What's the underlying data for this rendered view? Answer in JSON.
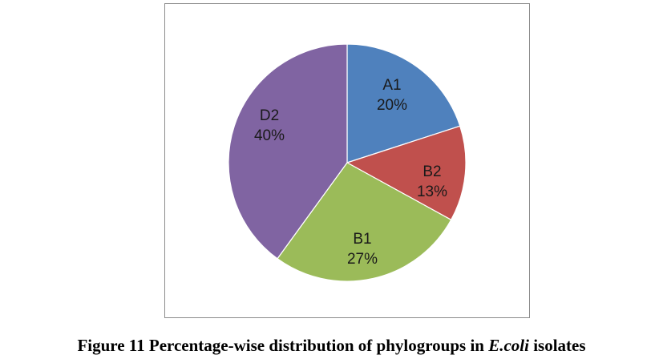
{
  "chart_data": {
    "type": "pie",
    "slices": [
      {
        "name": "A1",
        "value": 20,
        "label": "20%",
        "color": "#4f81bd"
      },
      {
        "name": "B2",
        "value": 13,
        "label": "13%",
        "color": "#c0504d"
      },
      {
        "name": "B1",
        "value": 27,
        "label": "27%",
        "color": "#9bbb59"
      },
      {
        "name": "D2",
        "value": 40,
        "label": "40%",
        "color": "#8064a2"
      }
    ],
    "start_angle_deg": 0,
    "direction": "clockwise",
    "legend": "none",
    "labels_inside": true
  },
  "caption": {
    "prefix": "Figure 11 Percentage-wise distribution of phylogroups in ",
    "italic": "E.coli",
    "suffix": " isolates"
  }
}
